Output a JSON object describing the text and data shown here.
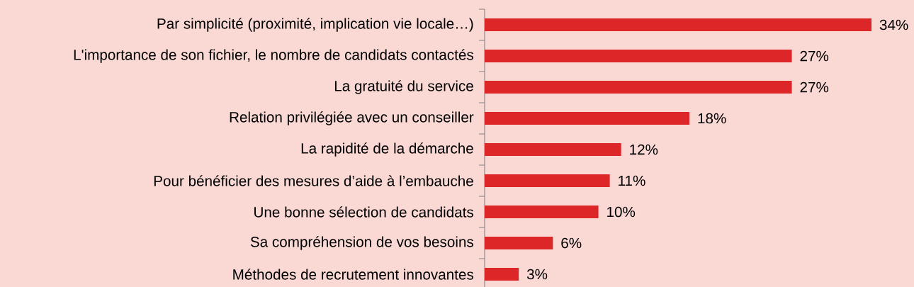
{
  "chart_data": {
    "type": "bar",
    "orientation": "horizontal",
    "color": "#dc2628",
    "categories": [
      "Par simplicité (proximité, implication vie locale…)",
      "L'importance de son fichier, le nombre de candidats contactés",
      "La gratuité du service",
      "Relation privilégiée avec un conseiller",
      "La rapidité de la démarche",
      "Pour bénéficier des mesures d’aide à l’embauche",
      "Une bonne sélection de candidats",
      "Sa compréhension de vos besoins",
      "Méthodes de recrutement innovantes"
    ],
    "values": [
      34,
      27,
      27,
      18,
      12,
      11,
      10,
      6,
      3
    ],
    "value_labels": [
      "34%",
      "27%",
      "27%",
      "18%",
      "12%",
      "11%",
      "10%",
      "6%",
      "3%"
    ]
  }
}
